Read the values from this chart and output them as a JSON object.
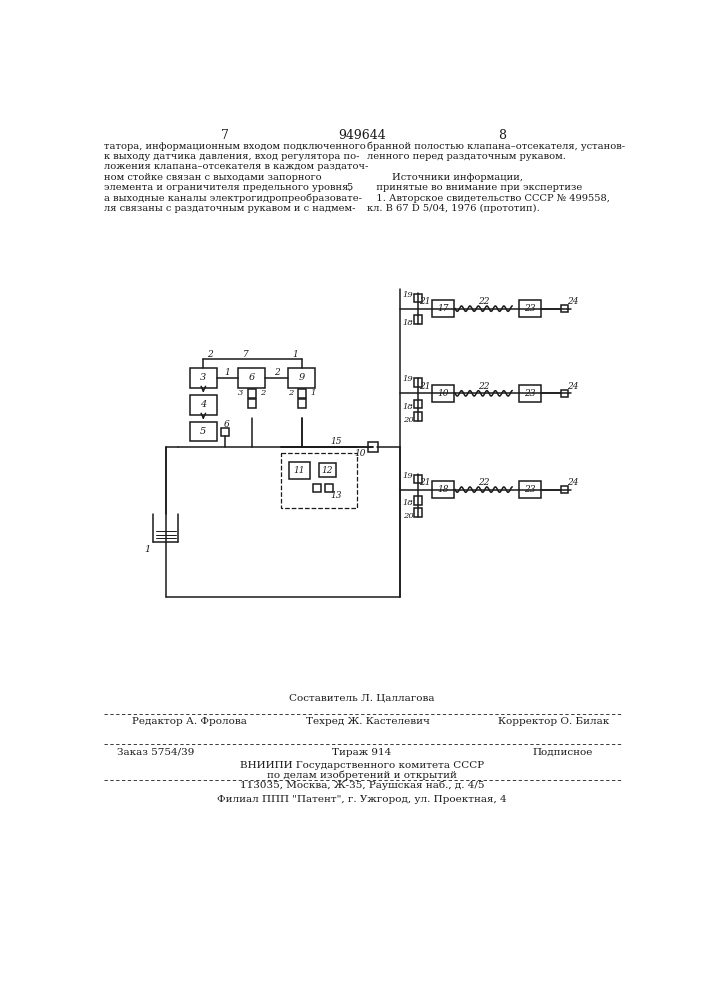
{
  "page_number_left": "7",
  "patent_number": "949644",
  "page_number_right": "8",
  "text_left": "татора, информационным входом подключенного\nк выходу датчика давления, вход регулятора по-\nложения клапана–отсекателя в каждом раздаточ-\nном стойке связан с выходами запорного\nэлемента и ограничителя предельного уровня,\nа выходные каналы электрогидропреобразовате-\nля связаны с раздаточным рукавом и с надмем-",
  "line_number": "5",
  "text_right": "бранной полостью клапана–отсекателя, установ-\nленного перед раздаточным рукавом.\n\n        Источники информации,\n   принятые во внимание при экспертизе\n   1. Авторское свидетельство СССР № 499558,\nкл. В 67 D 5/04, 1976 (прототип).",
  "editor_line": "Редактор А. Фролова",
  "composer_line1": "Составитель Л. Цаллагова",
  "composer_line2": "Техред Ж. Кастелевич",
  "corrector_line": "Корректор О. Билак",
  "order_line": "Заказ 5754/39",
  "circulation_line": "Тираж 914",
  "subscription_line": "Подписное",
  "org_line1": "ВНИИПИ Государственного комитета СССР",
  "org_line2": "по делам изобретений и открытий",
  "org_line3": "113035, Москва, Ж-35, Раушская наб., д. 4/5",
  "branch_line": "Филиал ППП \"Патент\", г. Ужгород, ул. Проектная, 4",
  "bg_color": "#ffffff",
  "text_color": "#1a1a1a",
  "diagram_color": "#1a1a1a"
}
